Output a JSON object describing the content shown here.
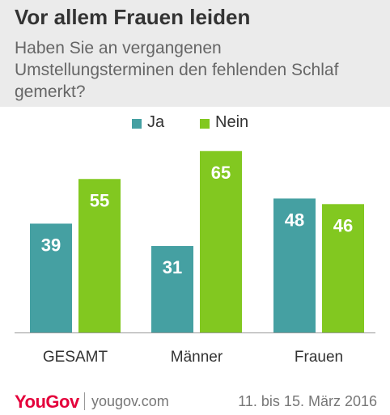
{
  "chart_data": {
    "type": "bar",
    "title": "Vor allem Frauen leiden",
    "subtitle": "Haben Sie an vergangenen Umstellungsterminen den fehlenden Schlaf gemerkt?",
    "categories": [
      "GESAMT",
      "Männer",
      "Frauen"
    ],
    "series": [
      {
        "name": "Ja",
        "color": "#45a0a2",
        "values": [
          39,
          31,
          48
        ]
      },
      {
        "name": "Nein",
        "color": "#82c820",
        "values": [
          55,
          65,
          46
        ]
      }
    ],
    "ylim": [
      0,
      70
    ],
    "grid": false,
    "legend_position": "top-center",
    "data_labels": true
  },
  "footer": {
    "brand": "YouGov",
    "url": "yougov.com",
    "date": "11. bis 15. März 2016"
  },
  "colors": {
    "header_bg": "#ebebeb",
    "brand_red": "#e4003b",
    "baseline": "#999999"
  }
}
